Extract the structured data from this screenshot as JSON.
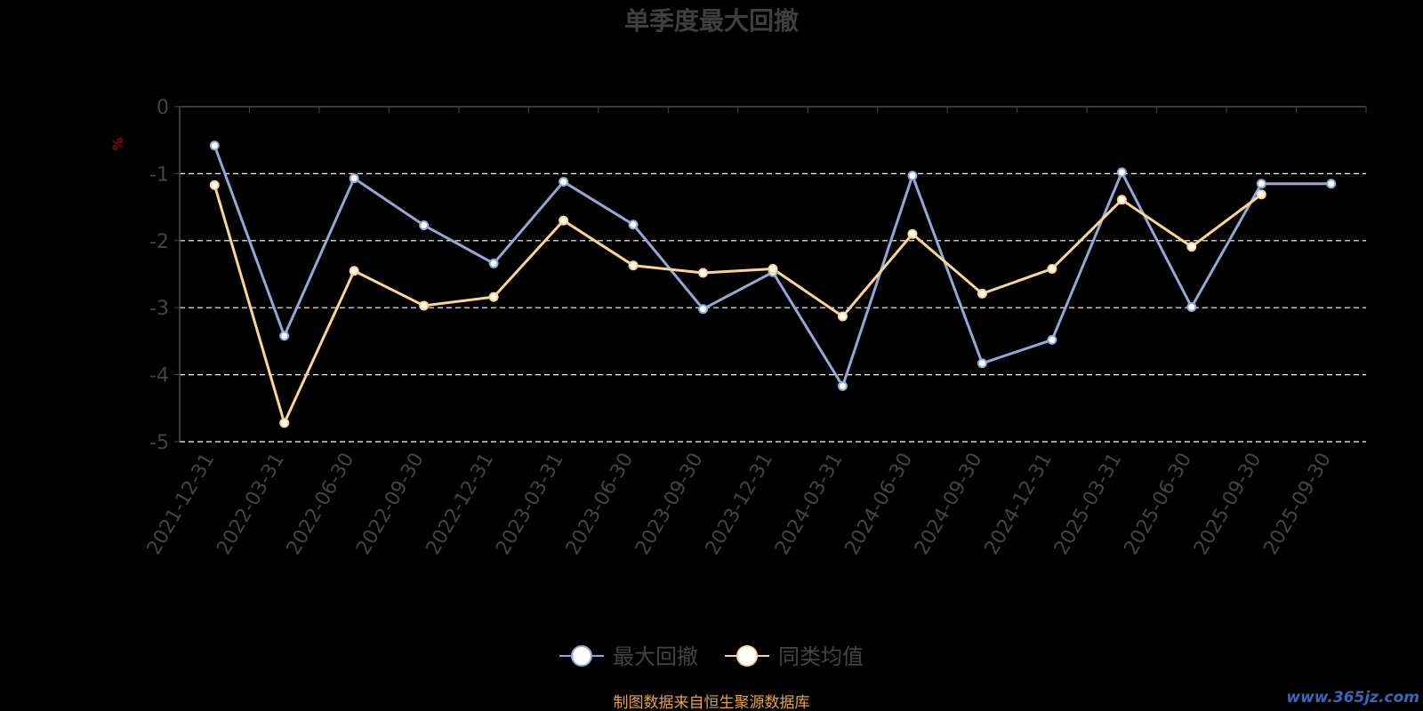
{
  "chart_data": {
    "type": "line",
    "title": "单季度最大回撤",
    "ylabel": "%",
    "ylim": [
      -5,
      0
    ],
    "yticks": [
      0,
      -1,
      -2,
      -3,
      -4,
      -5
    ],
    "categories": [
      "2021-12-31",
      "2022-03-31",
      "2022-06-30",
      "2022-09-30",
      "2022-12-31",
      "2023-03-31",
      "2023-06-30",
      "2023-09-30",
      "2023-12-31",
      "2024-03-31",
      "2024-06-30",
      "2024-09-30",
      "2024-12-31",
      "2025-03-31",
      "2025-06-30",
      "2025-09-30",
      "2025-09-30"
    ],
    "series": [
      {
        "name": "最大回撤",
        "color": "#8fa9d8",
        "values": [
          -0.58,
          -3.42,
          -1.07,
          -1.77,
          -2.34,
          -1.12,
          -1.76,
          -3.02,
          -2.47,
          -4.17,
          -1.03,
          -3.83,
          -3.48,
          -0.98,
          -2.99,
          -1.15,
          -1.15
        ]
      },
      {
        "name": "同类均值",
        "color": "#fcd593",
        "values": [
          -1.17,
          -4.72,
          -2.45,
          -2.97,
          -2.84,
          -1.7,
          -2.37,
          -2.48,
          -2.42,
          -3.13,
          -1.9,
          -2.79,
          -2.42,
          -1.39,
          -2.09,
          -1.31,
          null
        ]
      }
    ],
    "grid": "dashed-horizontal",
    "legend_position": "bottom-center"
  },
  "footer": {
    "source_text": "制图数据来自恒生聚源数据库",
    "watermark": "www.365jz.com"
  },
  "colors": {
    "title": "#3f3f3f",
    "axis": "#4a4a4a",
    "tick_text": "#444444",
    "grid": "#ffffff",
    "ylabel": "#cc0000",
    "source": "#e8a33b",
    "watermark": "#3a68b8"
  }
}
